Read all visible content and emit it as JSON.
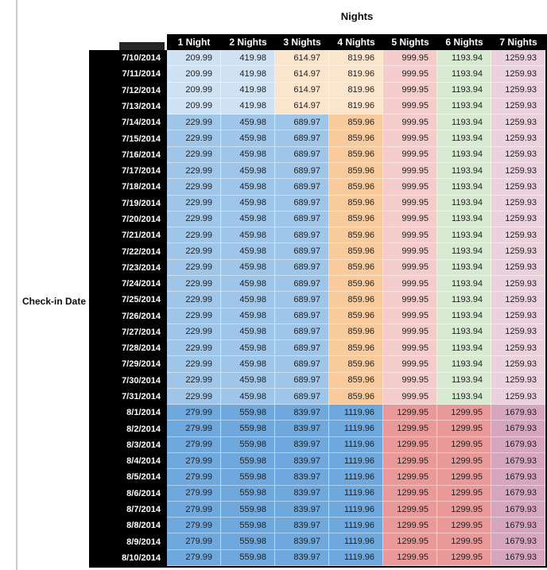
{
  "title": "Nights",
  "row_axis_label": "Check-in Date",
  "colors": {
    "light_blue": "#cfe2f3",
    "peach": "#fce5cd",
    "medium_blue": "#9fc5e8",
    "orange": "#f9cb9c",
    "pink": "#f4cccc",
    "green": "#d9ead3",
    "lavender": "#ead1dc",
    "strong_blue": "#6fa8dc",
    "salmon": "#ea9999",
    "mauve": "#d5a6bd",
    "header_bg": "#000000",
    "header_text": "#ffffff"
  },
  "chart_data": {
    "type": "table",
    "title": "Nights",
    "row_label": "Check-in Date",
    "columns": [
      "1 Night",
      "2 Nights",
      "3 Nights",
      "4 Nights",
      "5 Nights",
      "6 Nights",
      "7 Nights"
    ],
    "bands": [
      {
        "dates": [
          "7/10/2014",
          "7/11/2014",
          "7/12/2014",
          "7/13/2014"
        ],
        "values": [
          "209.99",
          "419.98",
          "614.97",
          "819.96",
          "999.95",
          "1193.94",
          "1259.93"
        ],
        "cell_colors": [
          "light_blue",
          "light_blue",
          "peach",
          "peach",
          "pink",
          "green",
          "lavender"
        ]
      },
      {
        "dates": [
          "7/14/2014",
          "7/15/2014",
          "7/16/2014",
          "7/17/2014",
          "7/18/2014",
          "7/19/2014",
          "7/20/2014",
          "7/21/2014",
          "7/22/2014",
          "7/23/2014",
          "7/24/2014",
          "7/25/2014",
          "7/26/2014",
          "7/27/2014",
          "7/28/2014",
          "7/29/2014",
          "7/30/2014",
          "7/31/2014"
        ],
        "values": [
          "229.99",
          "459.98",
          "689.97",
          "859.96",
          "999.95",
          "1193.94",
          "1259.93"
        ],
        "cell_colors": [
          "medium_blue",
          "medium_blue",
          "medium_blue",
          "orange",
          "pink",
          "green",
          "lavender"
        ]
      },
      {
        "dates": [
          "8/1/2014",
          "8/2/2014",
          "8/3/2014",
          "8/4/2014",
          "8/5/2014",
          "8/6/2014",
          "8/7/2014",
          "8/8/2014",
          "8/9/2014",
          "8/10/2014"
        ],
        "values": [
          "279.99",
          "559.98",
          "839.97",
          "1119.96",
          "1299.95",
          "1299.95",
          "1679.93"
        ],
        "cell_colors": [
          "strong_blue",
          "strong_blue",
          "strong_blue",
          "strong_blue",
          "salmon",
          "salmon",
          "mauve"
        ]
      }
    ]
  }
}
